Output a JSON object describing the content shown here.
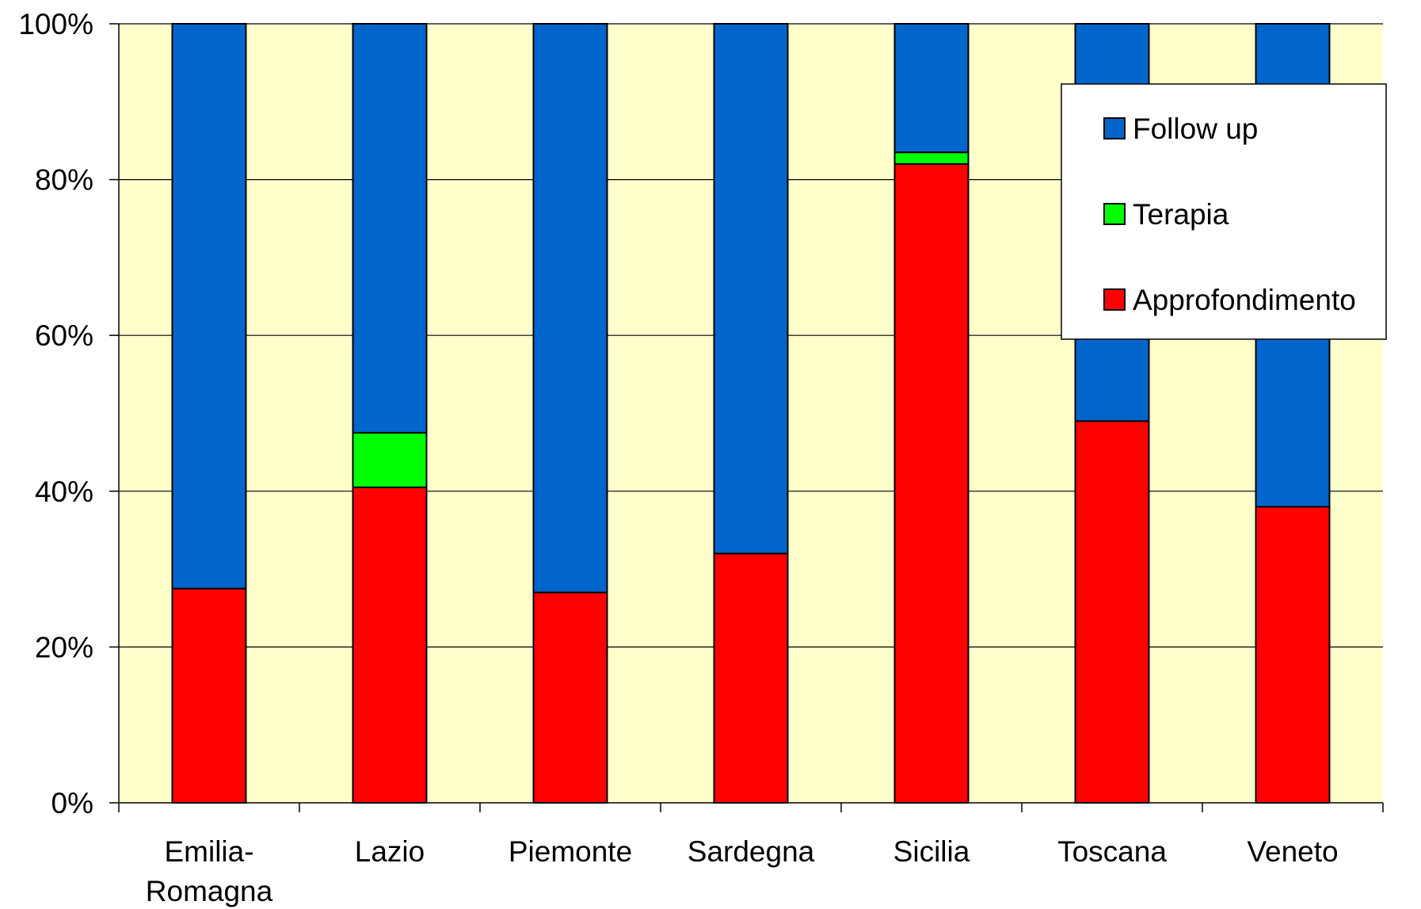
{
  "chart_data": {
    "type": "bar",
    "stacked": true,
    "percent_axis": true,
    "categories": [
      "Emilia-Romagna",
      "Lazio",
      "Piemonte",
      "Sardegna",
      "Sicilia",
      "Toscana",
      "Veneto"
    ],
    "category_label_lines": [
      [
        "Emilia-",
        "Romagna"
      ],
      [
        "Lazio"
      ],
      [
        "Piemonte"
      ],
      [
        "Sardegna"
      ],
      [
        "Sicilia"
      ],
      [
        "Toscana"
      ],
      [
        "Veneto"
      ]
    ],
    "series": [
      {
        "name": "Approfondimento",
        "color": "#FF0000",
        "values": [
          27.5,
          40.5,
          27,
          32,
          82,
          49,
          38
        ]
      },
      {
        "name": "Terapia",
        "color": "#00FF00",
        "values": [
          0,
          7,
          0,
          0,
          1.5,
          0,
          0
        ]
      },
      {
        "name": "Follow up",
        "color": "#0066CC",
        "values": [
          72.5,
          52.5,
          73,
          68,
          16.5,
          51,
          62
        ]
      }
    ],
    "ylim": [
      0,
      100
    ],
    "yticks": [
      "0%",
      "20%",
      "40%",
      "60%",
      "80%",
      "100%"
    ],
    "ytick_values": [
      0,
      20,
      40,
      60,
      80,
      100
    ],
    "legend": {
      "position": "top-right",
      "order": [
        "Follow up",
        "Terapia",
        "Approfondimento"
      ]
    },
    "grid": true,
    "plot_background": "#FFFFCC",
    "title": "",
    "xlabel": "",
    "ylabel": ""
  }
}
